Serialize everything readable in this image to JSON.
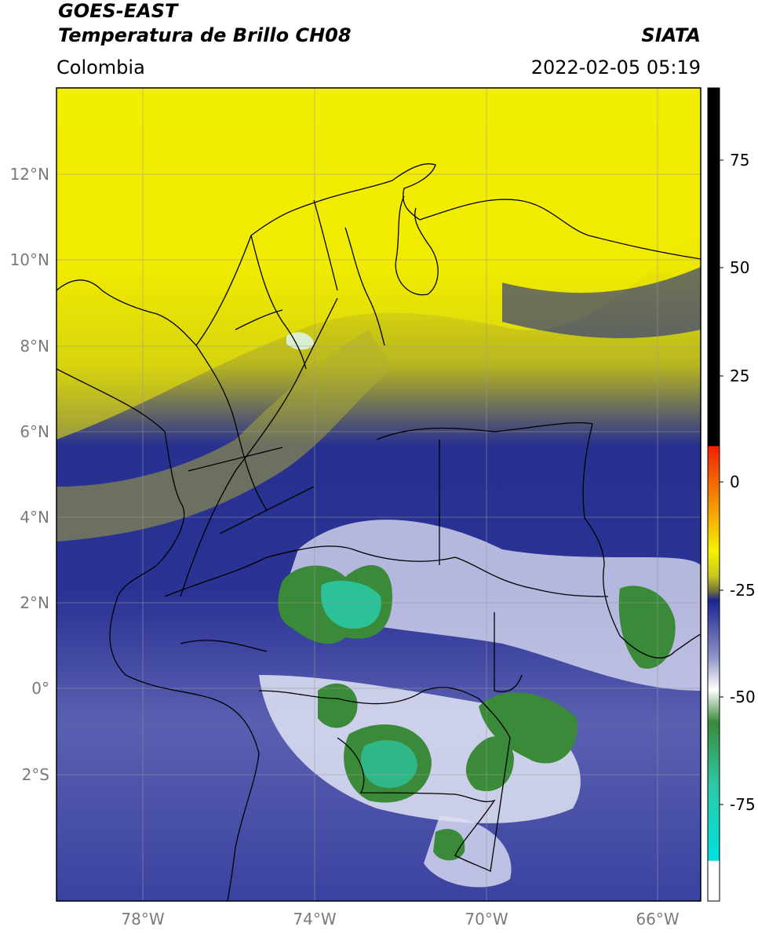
{
  "header": {
    "satellite": "GOES-EAST",
    "product": "Temperatura de Brillo CH08",
    "region": "Colombia",
    "source": "SIATA",
    "timestamp": "2022-02-05 05:19"
  },
  "map": {
    "lat_labels": [
      "12°N",
      "10°N",
      "8°N",
      "6°N",
      "4°N",
      "2°N",
      "0°",
      "2°S"
    ],
    "lon_labels": [
      "78°W",
      "74°W",
      "70°W",
      "66°W"
    ],
    "extent": {
      "lon_min": -80,
      "lon_max": -65,
      "lat_min": -5,
      "lat_max": 14
    }
  },
  "colorbar": {
    "tick_labels": [
      "75",
      "50",
      "25",
      "0",
      "-25",
      "-50",
      "-75"
    ],
    "colors": {
      "black": "#000000",
      "red": "#ee2200",
      "orange": "#f5a000",
      "yellow": "#f7f200",
      "olive": "#8c8c30",
      "navy": "#1a2490",
      "lavender": "#b0b4dc",
      "white": "#ffffff",
      "green": "#3a8a3a",
      "teal": "#2ccaa8",
      "cyan": "#00e0e0"
    }
  }
}
